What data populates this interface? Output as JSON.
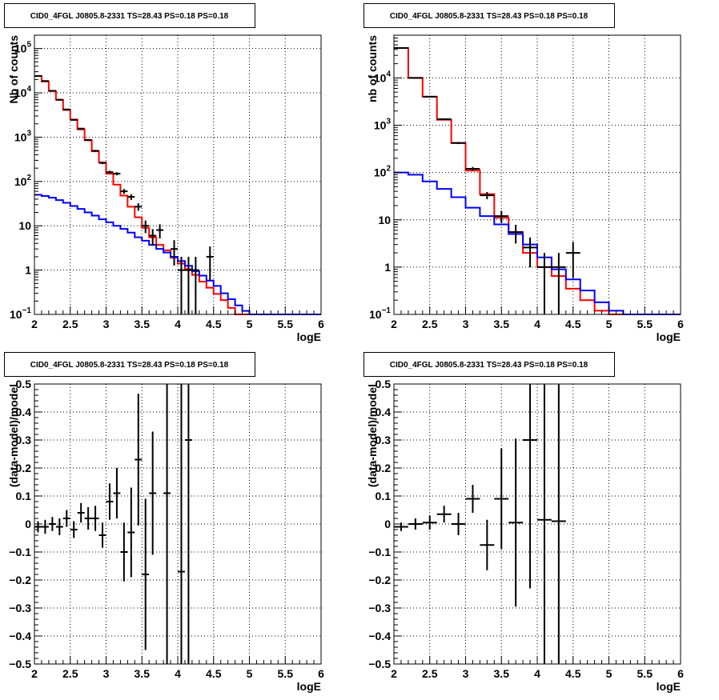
{
  "chart_data": [
    {
      "type": "line",
      "title": "CID0_4FGL J0805.8-2331 TS=28.43 PS=0.18 PS=0.18",
      "xlabel": "logE",
      "ylabel": "Nb of counts",
      "xlim": [
        2,
        6
      ],
      "ylim": [
        0.1,
        200000
      ],
      "log_y": true,
      "grid": true,
      "x_ticks": [
        "2",
        "2.5",
        "3",
        "3.5",
        "4",
        "4.5",
        "5",
        "5.5",
        "6"
      ],
      "y_ticks": [
        {
          "value": 0.1,
          "base": "10",
          "exp": "−1"
        },
        {
          "value": 1,
          "text": "1"
        },
        {
          "value": 10,
          "text": "10"
        },
        {
          "value": 100,
          "base": "10",
          "exp": "2"
        },
        {
          "value": 1000,
          "base": "10",
          "exp": "3"
        },
        {
          "value": 10000,
          "base": "10",
          "exp": "4"
        },
        {
          "value": 100000,
          "base": "10",
          "exp": "5"
        }
      ],
      "colors": {
        "model_total": "#ff0000",
        "background": "#0000ff",
        "data": "#000000"
      },
      "bin_edges": [
        2.0,
        2.1,
        2.2,
        2.3,
        2.4,
        2.5,
        2.6,
        2.7,
        2.8,
        2.9,
        3.0,
        3.1,
        3.2,
        3.3,
        3.4,
        3.5,
        3.6,
        3.7,
        3.8,
        3.9,
        4.0,
        4.1,
        4.2,
        4.3,
        4.4,
        4.5,
        4.6,
        4.7,
        4.8,
        4.9,
        5.0,
        5.1,
        5.2,
        5.3,
        5.4,
        5.5,
        5.6,
        5.7,
        5.8,
        5.9,
        6.0
      ],
      "series": [
        {
          "values": [
            24000,
            18000,
            11000,
            7000,
            4100,
            2500,
            1500,
            850,
            480,
            270,
            150,
            85,
            48,
            27,
            15.5,
            9,
            5.5,
            3.7,
            2.8,
            1.9,
            1.4,
            1.05,
            0.78,
            0.55,
            0.4,
            0.29,
            0.21,
            0.14,
            0.1,
            0.1,
            0.1,
            0.1,
            0.1,
            0.1,
            0.1,
            0.1,
            0.1,
            0.1,
            0.1,
            0.1
          ]
        },
        {
          "values": [
            50,
            47,
            43,
            38,
            33,
            28,
            24,
            20,
            17,
            14,
            12,
            10,
            8.5,
            7,
            5.5,
            4.6,
            3.7,
            3,
            2.5,
            2,
            1.6,
            1.25,
            0.95,
            0.75,
            0.58,
            0.44,
            0.3,
            0.22,
            0.16,
            0.12,
            0.1,
            0.1,
            0.1,
            0.1,
            0.1,
            0.1,
            0.1,
            0.1,
            0.1,
            0.1
          ]
        }
      ],
      "points": [
        {
          "x": 2.05,
          "y": 24000
        },
        {
          "x": 2.15,
          "y": 18500
        },
        {
          "x": 2.25,
          "y": 11100
        },
        {
          "x": 2.35,
          "y": 6950
        },
        {
          "x": 2.45,
          "y": 4220
        },
        {
          "x": 2.55,
          "y": 2450
        },
        {
          "x": 2.65,
          "y": 1560
        },
        {
          "x": 2.75,
          "y": 868
        },
        {
          "x": 2.85,
          "y": 493
        },
        {
          "x": 2.95,
          "y": 262
        },
        {
          "x": 3.05,
          "y": 162
        },
        {
          "x": 3.15,
          "y": 150
        },
        {
          "x": 3.25,
          "y": 60
        },
        {
          "x": 3.35,
          "y": 45
        },
        {
          "x": 3.45,
          "y": 27
        },
        {
          "x": 3.55,
          "y": 10
        },
        {
          "x": 3.65,
          "y": 6
        },
        {
          "x": 3.75,
          "y": 8
        },
        {
          "x": 3.95,
          "y": 3
        },
        {
          "x": 4.05,
          "y": 1
        },
        {
          "x": 4.15,
          "y": 1
        },
        {
          "x": 4.25,
          "y": 1
        },
        {
          "x": 4.45,
          "y": 2
        }
      ]
    },
    {
      "type": "line",
      "title": "CID0_4FGL J0805.8-2331 TS=28.43 PS=0.18 PS=0.18",
      "xlabel": "logE",
      "ylabel": "nb of counts",
      "xlim": [
        2,
        6
      ],
      "ylim": [
        0.1,
        80000
      ],
      "log_y": true,
      "grid": true,
      "x_ticks": [
        "2",
        "2.5",
        "3",
        "3.5",
        "4",
        "4.5",
        "5",
        "5.5",
        "6"
      ],
      "y_ticks": [
        {
          "value": 0.1,
          "base": "10",
          "exp": "−1"
        },
        {
          "value": 1,
          "text": "1"
        },
        {
          "value": 10,
          "text": "10"
        },
        {
          "value": 100,
          "base": "10",
          "exp": "2"
        },
        {
          "value": 1000,
          "base": "10",
          "exp": "3"
        },
        {
          "value": 10000,
          "base": "10",
          "exp": "4"
        }
      ],
      "colors": {
        "model_total": "#ff0000",
        "background": "#0000ff",
        "data": "#000000"
      },
      "bin_edges": [
        2.0,
        2.2,
        2.4,
        2.6,
        2.8,
        3.0,
        3.2,
        3.4,
        3.6,
        3.8,
        4.0,
        4.2,
        4.4,
        4.6,
        4.8,
        5.0,
        5.2,
        5.4,
        5.6,
        5.8,
        6.0
      ],
      "series": [
        {
          "values": [
            43000,
            10000,
            4000,
            1300,
            420,
            110,
            35,
            11,
            5.5,
            2,
            1,
            0.65,
            0.35,
            0.2,
            0.12,
            0.1,
            0.1,
            0.1,
            0.1,
            0.1
          ]
        },
        {
          "values": [
            100,
            90,
            65,
            45,
            30,
            18,
            12,
            8,
            5,
            3,
            1.6,
            0.9,
            0.55,
            0.32,
            0.18,
            0.12,
            0.1,
            0.1,
            0.1,
            0.1
          ]
        }
      ],
      "points": [
        {
          "x": 2.1,
          "y": 43000
        },
        {
          "x": 2.3,
          "y": 10000
        },
        {
          "x": 2.5,
          "y": 4000
        },
        {
          "x": 2.7,
          "y": 1340
        },
        {
          "x": 2.9,
          "y": 420
        },
        {
          "x": 3.1,
          "y": 120
        },
        {
          "x": 3.3,
          "y": 33
        },
        {
          "x": 3.5,
          "y": 12
        },
        {
          "x": 3.7,
          "y": 5.5
        },
        {
          "x": 3.9,
          "y": 2.6
        },
        {
          "x": 4.1,
          "y": 1
        },
        {
          "x": 4.3,
          "y": 1
        },
        {
          "x": 4.5,
          "y": 2
        }
      ]
    },
    {
      "type": "scatter",
      "title": "CID0_4FGL J0805.8-2331 TS=28.43 PS=0.18 PS=0.18",
      "xlabel": "logE",
      "ylabel": "(data-model)/model",
      "xlim": [
        2,
        6
      ],
      "ylim": [
        -0.5,
        0.5
      ],
      "grid": true,
      "x_ticks": [
        "2",
        "2.5",
        "3",
        "3.5",
        "4",
        "4.5",
        "5",
        "5.5",
        "6"
      ],
      "y_ticks": [
        "−0.5",
        "−0.4",
        "−0.3",
        "−0.2",
        "−0.1",
        "0",
        "0.1",
        "0.2",
        "0.3",
        "0.4",
        "0.5"
      ],
      "points": [
        {
          "x": 2.05,
          "y": -0.01,
          "err": 0.02
        },
        {
          "x": 2.15,
          "y": -0.01,
          "err": 0.025
        },
        {
          "x": 2.25,
          "y": 0.0,
          "err": 0.025
        },
        {
          "x": 2.35,
          "y": -0.01,
          "err": 0.03
        },
        {
          "x": 2.45,
          "y": 0.02,
          "err": 0.03
        },
        {
          "x": 2.55,
          "y": -0.02,
          "err": 0.03
        },
        {
          "x": 2.65,
          "y": 0.04,
          "err": 0.035
        },
        {
          "x": 2.75,
          "y": 0.02,
          "err": 0.04
        },
        {
          "x": 2.85,
          "y": 0.02,
          "err": 0.045
        },
        {
          "x": 2.95,
          "y": -0.04,
          "err": 0.045
        },
        {
          "x": 3.05,
          "y": 0.08,
          "err": 0.065
        },
        {
          "x": 3.15,
          "y": 0.11,
          "err": 0.09
        },
        {
          "x": 3.25,
          "y": -0.1,
          "err": 0.105
        },
        {
          "x": 3.35,
          "y": -0.03,
          "err": 0.16
        },
        {
          "x": 3.45,
          "y": 0.23,
          "err": 0.235
        },
        {
          "x": 3.55,
          "y": -0.18,
          "err": 0.27
        },
        {
          "x": 3.65,
          "y": 0.11,
          "err": 0.22
        },
        {
          "x": 3.85,
          "y": 0.11,
          "err": 0.7
        },
        {
          "x": 4.05,
          "y": -0.17,
          "err": 0.9
        },
        {
          "x": 4.15,
          "y": 0.3,
          "err": 1.0
        }
      ]
    },
    {
      "type": "scatter",
      "title": "CID0_4FGL J0805.8-2331 TS=28.43 PS=0.18 PS=0.18",
      "xlabel": "logE",
      "ylabel": "(data-model)/model",
      "xlim": [
        2,
        6
      ],
      "ylim": [
        -0.5,
        0.5
      ],
      "grid": true,
      "x_ticks": [
        "2",
        "2.5",
        "3",
        "3.5",
        "4",
        "4.5",
        "5",
        "5.5",
        "6"
      ],
      "y_ticks": [
        "−0.5",
        "−0.4",
        "−0.3",
        "−0.2",
        "−0.1",
        "0",
        "0.1",
        "0.2",
        "0.3",
        "0.4",
        "0.5"
      ],
      "points": [
        {
          "x": 2.1,
          "y": -0.01,
          "err": 0.015
        },
        {
          "x": 2.3,
          "y": 0.0,
          "err": 0.02
        },
        {
          "x": 2.5,
          "y": 0.005,
          "err": 0.025
        },
        {
          "x": 2.7,
          "y": 0.035,
          "err": 0.03
        },
        {
          "x": 2.9,
          "y": 0.0,
          "err": 0.04
        },
        {
          "x": 3.1,
          "y": 0.09,
          "err": 0.05
        },
        {
          "x": 3.3,
          "y": -0.075,
          "err": 0.09
        },
        {
          "x": 3.5,
          "y": 0.09,
          "err": 0.18
        },
        {
          "x": 3.7,
          "y": 0.005,
          "err": 0.3
        },
        {
          "x": 3.9,
          "y": 0.3,
          "err": 0.53
        },
        {
          "x": 4.1,
          "y": 0.015,
          "err": 1.0
        },
        {
          "x": 4.3,
          "y": 0.01,
          "err": 1.0
        }
      ]
    }
  ]
}
